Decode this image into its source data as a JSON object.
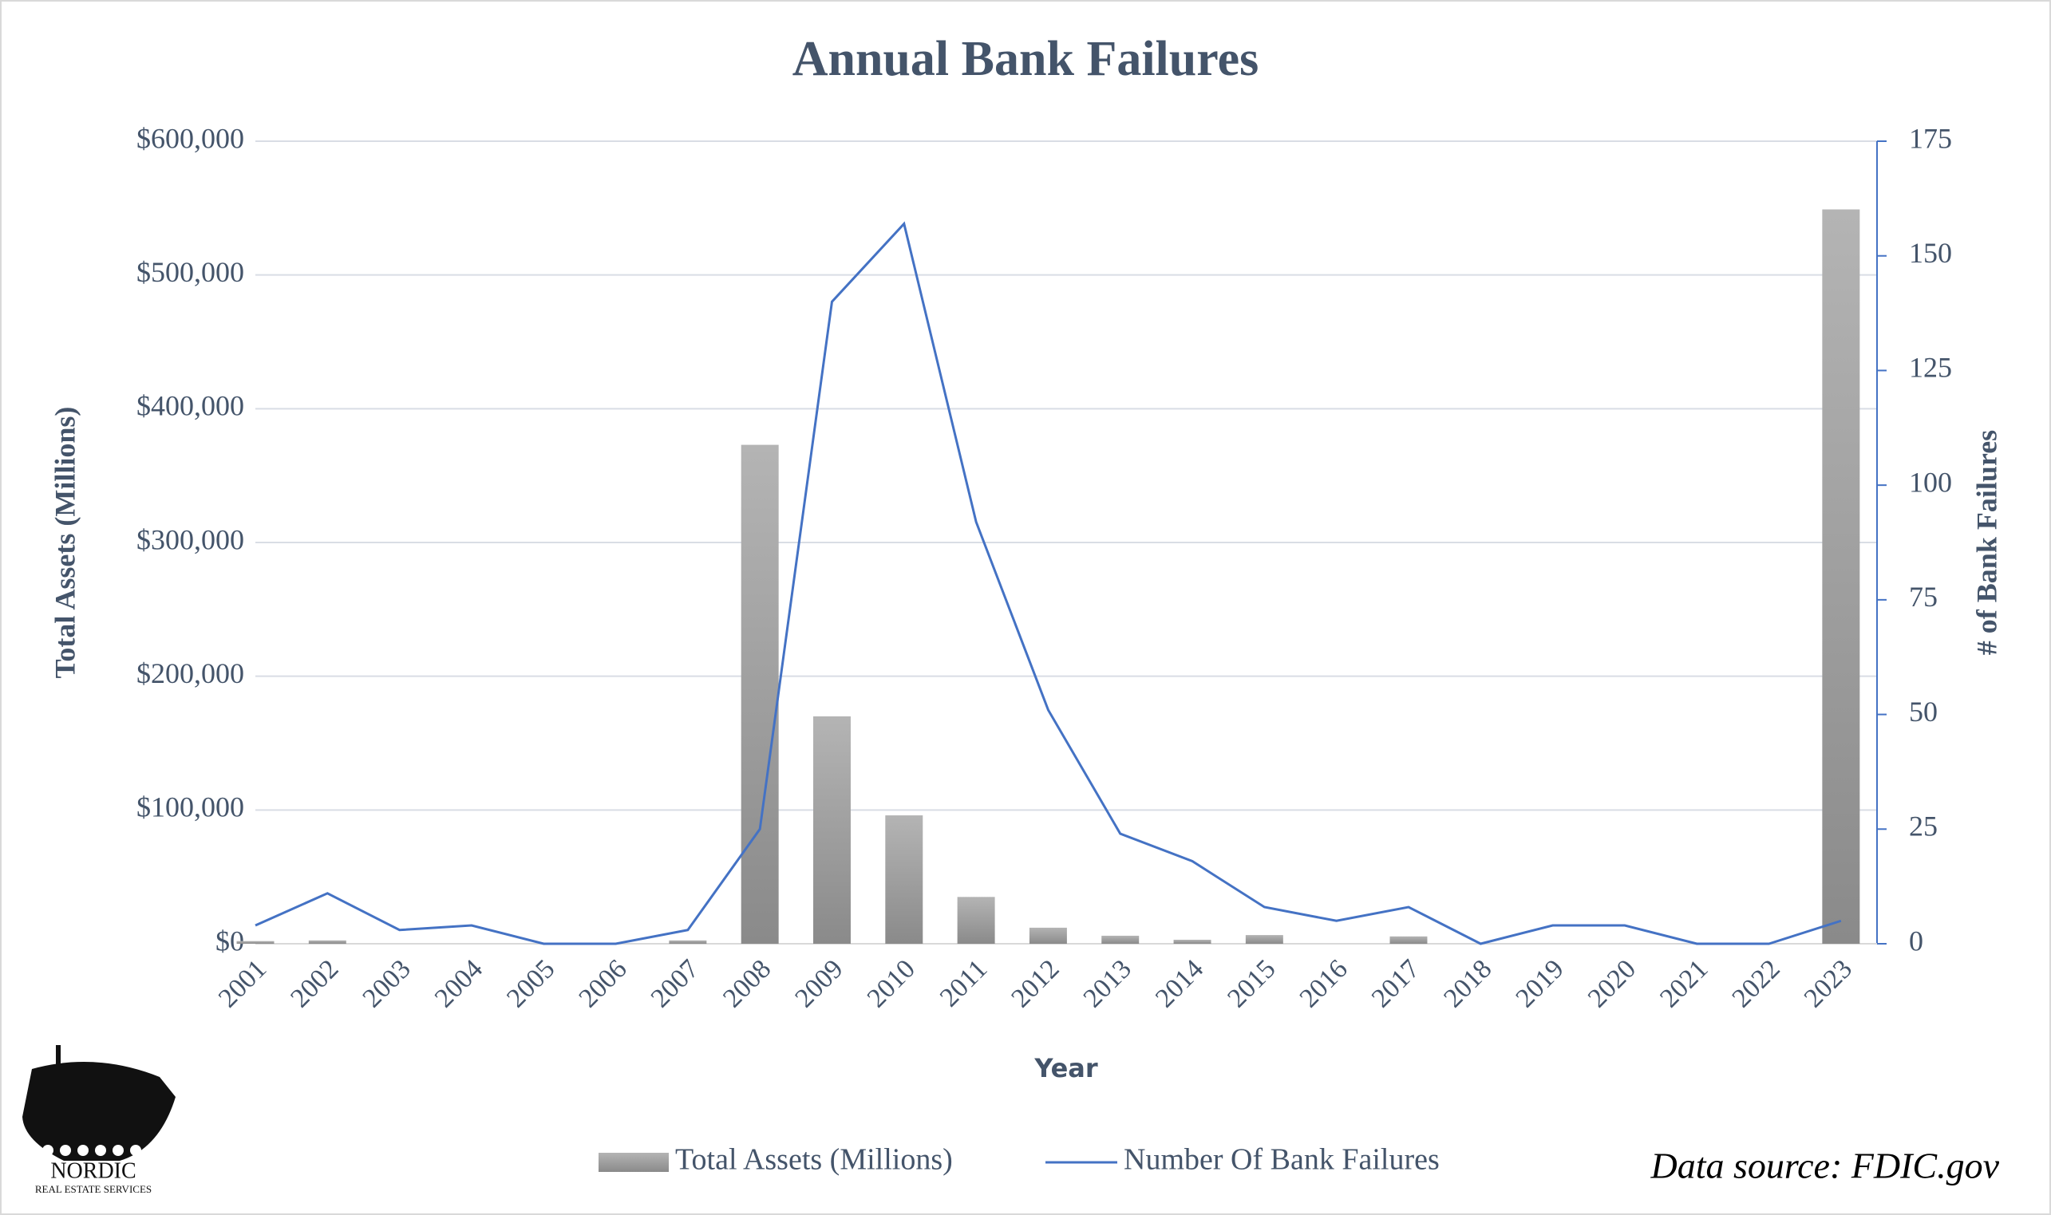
{
  "chart_data": {
    "type": "bar_line",
    "title": "Annual Bank Failures",
    "x_label": "Year",
    "y_label": "Total Assets (Millions)",
    "y2_label": "# of Bank Failures",
    "categories": [
      "2001",
      "2002",
      "2003",
      "2004",
      "2005",
      "2006",
      "2007",
      "2008",
      "2009",
      "2010",
      "2011",
      "2012",
      "2013",
      "2014",
      "2015",
      "2016",
      "2017",
      "2018",
      "2019",
      "2020",
      "2021",
      "2022",
      "2023"
    ],
    "series": [
      {
        "name": "Total Assets (Millions)",
        "type": "bar",
        "color": "#9a9a9a",
        "values": [
          2000,
          2500,
          0,
          0,
          0,
          0,
          2500,
          373000,
          170000,
          96000,
          35000,
          12000,
          6000,
          3000,
          6500,
          0,
          5500,
          0,
          0,
          0,
          0,
          0,
          549000
        ]
      },
      {
        "name": "Number Of Bank Failures",
        "type": "line",
        "axis": "y2",
        "color": "#4472c4",
        "values": [
          4,
          11,
          3,
          4,
          0,
          0,
          3,
          25,
          140,
          157,
          92,
          51,
          24,
          18,
          8,
          5,
          8,
          0,
          4,
          4,
          0,
          0,
          5
        ]
      }
    ],
    "ylim": [
      0,
      600000
    ],
    "yticks": [
      {
        "value": 0,
        "label": "$0"
      },
      {
        "value": 100000,
        "label": "$100,000"
      },
      {
        "value": 200000,
        "label": "$200,000"
      },
      {
        "value": 300000,
        "label": "$300,000"
      },
      {
        "value": 400000,
        "label": "$400,000"
      },
      {
        "value": 500000,
        "label": "$500,000"
      },
      {
        "value": 600000,
        "label": "$600,000"
      }
    ],
    "y2lim": [
      0,
      175
    ],
    "y2ticks": [
      0,
      25,
      50,
      75,
      100,
      125,
      150,
      175
    ],
    "grid": true,
    "legend": "bottom",
    "source": "Data source: FDIC.gov",
    "logo": {
      "name": "NORDIC",
      "tagline": "REAL ESTATE SERVICES"
    }
  }
}
